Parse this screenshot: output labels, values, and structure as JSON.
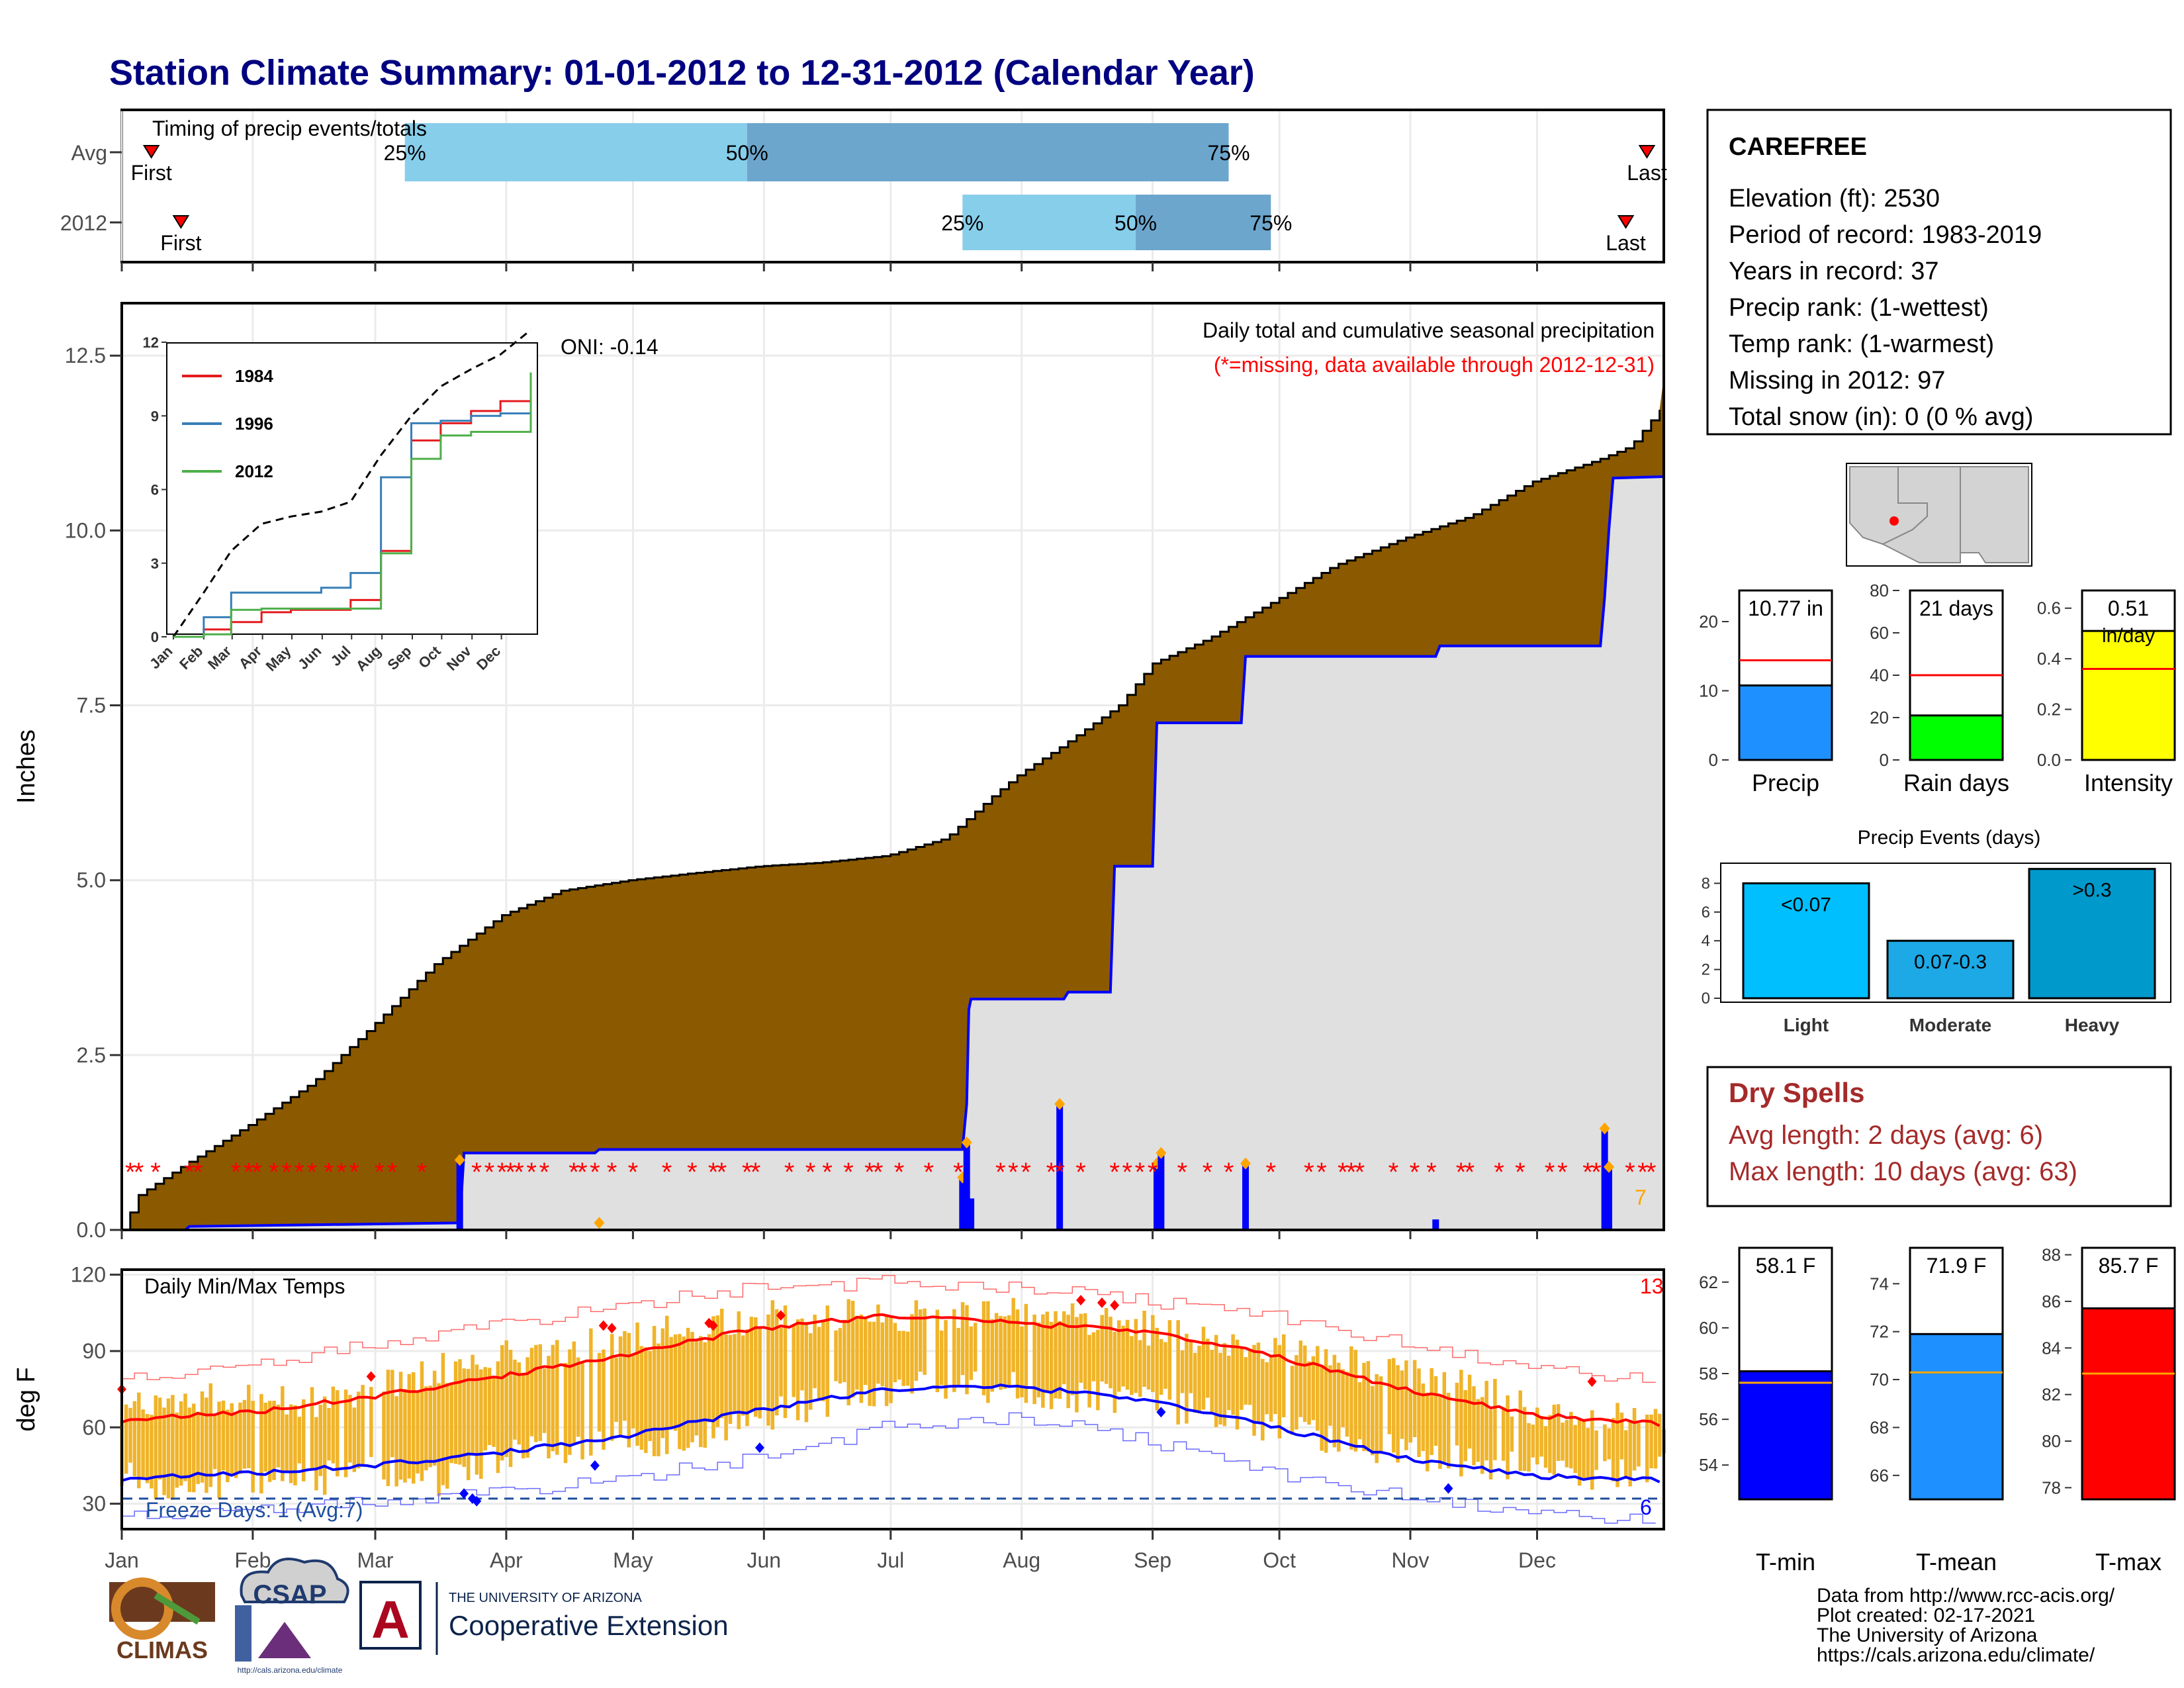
{
  "title": "Station Climate Summary: 01-01-2012 to 12-31-2012 (Calendar Year)",
  "station": {
    "name": "CAREFREE",
    "lines": [
      "Elevation (ft): 2530",
      "Period of record: 1983-2019",
      "Years in record: 37",
      "Precip rank:  (1-wettest)",
      "Temp rank:  (1-warmest)",
      "Missing in 2012: 97",
      "Total snow (in): 0 (0 % avg)"
    ]
  },
  "timing": {
    "label": "Timing of precip events/totals",
    "rows": [
      {
        "name": "Avg",
        "first_day": 8,
        "p25_day": 68,
        "p50_day": 149,
        "p75_day": 263,
        "last_day": 362
      },
      {
        "name": "2012",
        "first_day": 15,
        "p25_day": 200,
        "p50_day": 241,
        "p75_day": 273,
        "last_day": 357
      }
    ],
    "first_label": "First",
    "last_label": "Last",
    "pct_labels": [
      "25%",
      "50%",
      "75%"
    ]
  },
  "precip_panel": {
    "heading": "Daily total and cumulative seasonal precipitation",
    "note": "(*=missing, data available through 2012-12-31)",
    "oni": "ONI: -0.14",
    "ylabel": "Inches",
    "y_ticks": [
      "0.0",
      "2.5",
      "5.0",
      "7.5",
      "10.0",
      "12.5"
    ],
    "corner_count": "7",
    "colors": {
      "avg_fill": "#8B5A00",
      "obs_fill": "#E0E0E0",
      "obs_line": "#0000FF",
      "missing": "#FF0000",
      "event": "#FFA500"
    }
  },
  "inset": {
    "y_ticks": [
      "0",
      "3",
      "6",
      "9",
      "12"
    ],
    "x_ticks": [
      "Jan",
      "Feb",
      "Mar",
      "Apr",
      "May",
      "Jun",
      "Jul",
      "Aug",
      "Sep",
      "Oct",
      "Nov",
      "Dec"
    ],
    "legend": [
      {
        "name": "1984",
        "color": "#E41A1C"
      },
      {
        "name": "1996",
        "color": "#377EB8"
      },
      {
        "name": "2012",
        "color": "#4DAF4A"
      }
    ]
  },
  "temp_panel": {
    "heading": "Daily Min/Max Temps",
    "ylabel": "deg F",
    "y_ticks": [
      "30",
      "60",
      "90",
      "120"
    ],
    "freeze_label": "Freeze Days: 1 (Avg:7)",
    "count_high": "13",
    "count_low": "6"
  },
  "months": [
    "Jan",
    "Feb",
    "Mar",
    "Apr",
    "May",
    "Jun",
    "Jul",
    "Aug",
    "Sep",
    "Oct",
    "Nov",
    "Dec"
  ],
  "precip_bars": {
    "items": [
      {
        "value": "10.77 in",
        "label": "Precip",
        "color": "#1E90FF",
        "obs": 10.77,
        "avg": 14.4,
        "ticks": [
          "0",
          "10",
          "20"
        ]
      },
      {
        "value": "21 days",
        "label": "Rain days",
        "color": "#00FF00",
        "obs": 21,
        "avg": 40,
        "ticks": [
          "0",
          "20",
          "40",
          "60",
          "80"
        ]
      },
      {
        "value": "0.51",
        "unit": "in/day",
        "label": "Intensity",
        "color": "#FFFF00",
        "obs": 0.51,
        "avg": 0.36,
        "ticks": [
          "0.0",
          "0.2",
          "0.4",
          "0.6"
        ]
      }
    ]
  },
  "events": {
    "title": "Precip Events (days)",
    "y_ticks": [
      "0",
      "2",
      "4",
      "6",
      "8"
    ],
    "bars": [
      {
        "category": "Light",
        "label": "<0.07",
        "value": 8,
        "color": "#00BFFF"
      },
      {
        "category": "Moderate",
        "label": "0.07-0.3",
        "value": 4,
        "color": "#1CA9E6"
      },
      {
        "category": "Heavy",
        "label": ">0.3",
        "value": 9,
        "color": "#0099CC"
      }
    ]
  },
  "dry_spells": {
    "title": "Dry Spells",
    "lines": [
      "Avg length: 2 days (avg: 6)",
      "Max length: 10 days (avg: 63)"
    ]
  },
  "temp_bars": {
    "items": [
      {
        "value": "58.1 F",
        "label": "T-min",
        "color": "#0000FF",
        "obs": 58.1,
        "avg": 57.6,
        "lo": 52.5,
        "hi": 63.5,
        "ticks": [
          "54",
          "56",
          "58",
          "60",
          "62"
        ]
      },
      {
        "value": "71.9 F",
        "label": "T-mean",
        "color": "#1E90FF",
        "obs": 71.9,
        "avg": 70.3,
        "lo": 65.0,
        "hi": 75.5,
        "ticks": [
          "66",
          "68",
          "70",
          "72",
          "74"
        ]
      },
      {
        "value": "85.7 F",
        "label": "T-max",
        "color": "#FF0000",
        "obs": 85.7,
        "avg": 82.9,
        "lo": 77.5,
        "hi": 88.3,
        "ticks": [
          "78",
          "80",
          "82",
          "84",
          "86",
          "88"
        ]
      }
    ]
  },
  "footer": {
    "lines": [
      "Data from http://www.rcc-acis.org/",
      "Plot created: 02-17-2021",
      "The University of Arizona",
      "https://cals.arizona.edu/climate/"
    ],
    "logos": {
      "climas": "CLIMAS",
      "csap": "CSAP",
      "csap_url": "http://cals.arizona.edu/climate",
      "ua_small": "THE UNIVERSITY OF ARIZONA",
      "ua_big": "Cooperative Extension",
      "ua_letter": "A"
    }
  },
  "chart_data": [
    {
      "type": "area",
      "title": "Daily total and cumulative seasonal precipitation",
      "ylabel": "Inches",
      "ylim": [
        0,
        13.25
      ],
      "x_unit": "day of year",
      "series": [
        {
          "name": "avg_cumulative",
          "x": [
            1,
            5,
            15,
            31,
            46,
            60,
            75,
            91,
            105,
            121,
            136,
            152,
            166,
            182,
            196,
            207,
            213,
            223,
            237,
            245,
            258,
            274,
            288,
            305,
            320,
            335,
            350,
            358,
            362,
            366
          ],
          "values": [
            0,
            0.5,
            0.9,
            1.5,
            2.1,
            2.9,
            3.8,
            4.5,
            4.85,
            5.0,
            5.1,
            5.2,
            5.25,
            5.35,
            5.6,
            6.2,
            6.5,
            6.9,
            7.5,
            8.1,
            8.45,
            9.0,
            9.5,
            9.9,
            10.2,
            10.7,
            11.0,
            11.2,
            11.5,
            11.8
          ]
        },
        {
          "name": "2012_cumulative",
          "x": [
            1,
            16,
            17,
            81,
            82,
            113,
            114,
            200,
            201,
            201.5,
            202,
            224,
            225,
            235,
            236,
            245,
            246,
            266,
            267,
            312,
            313,
            351,
            352,
            353,
            354,
            366
          ],
          "values": [
            0,
            0,
            0.05,
            0.1,
            1.1,
            1.1,
            1.15,
            1.15,
            1.8,
            3.15,
            3.3,
            3.3,
            3.4,
            3.4,
            5.2,
            5.2,
            7.25,
            7.25,
            8.2,
            8.2,
            8.35,
            8.35,
            9.05,
            10.0,
            10.75,
            10.77
          ]
        },
        {
          "name": "2012_daily",
          "x": [
            81,
            200,
            201,
            202,
            223,
            246,
            247,
            267,
            312,
            352,
            353
          ],
          "values": [
            1.0,
            0.75,
            1.25,
            0.45,
            1.8,
            0.95,
            1.1,
            0.95,
            0.15,
            1.45,
            0.9
          ]
        }
      ]
    },
    {
      "type": "line",
      "title": "",
      "ylim": [
        0,
        12
      ],
      "series": [
        {
          "name": "avg",
          "x": [
            1,
            32,
            60,
            91,
            121,
            152,
            182,
            213,
            244,
            274,
            305,
            335,
            366
          ],
          "values": [
            0,
            1.8,
            3.5,
            4.6,
            4.9,
            5.1,
            5.5,
            7.4,
            9.0,
            10.2,
            10.9,
            11.5,
            12.5
          ]
        },
        {
          "name": "1984",
          "x": [
            1,
            32,
            60,
            91,
            121,
            152,
            182,
            213,
            244,
            274,
            305,
            335,
            366
          ],
          "values": [
            0,
            0.3,
            0.6,
            1.0,
            1.1,
            1.1,
            1.5,
            3.5,
            8.0,
            8.7,
            9.2,
            9.6,
            10.0
          ]
        },
        {
          "name": "1996",
          "x": [
            1,
            32,
            60,
            91,
            121,
            152,
            182,
            213,
            244,
            274,
            305,
            335,
            366
          ],
          "values": [
            0,
            0.8,
            1.8,
            1.8,
            1.8,
            2.0,
            2.6,
            6.5,
            8.7,
            8.8,
            9.0,
            9.1,
            9.1
          ]
        },
        {
          "name": "2012",
          "x": [
            1,
            32,
            60,
            91,
            121,
            152,
            182,
            213,
            244,
            274,
            305,
            335,
            366
          ],
          "values": [
            0,
            0.1,
            1.1,
            1.15,
            1.15,
            1.15,
            1.15,
            3.4,
            7.25,
            8.2,
            8.35,
            8.35,
            10.77
          ]
        }
      ]
    },
    {
      "type": "line",
      "title": "Daily Min/Max Temps",
      "ylabel": "deg F",
      "ylim": [
        20,
        122
      ],
      "series": [
        {
          "name": "avg_max",
          "x": [
            1,
            32,
            60,
            91,
            121,
            152,
            182,
            213,
            244,
            274,
            305,
            335,
            366
          ],
          "values": [
            63,
            66,
            72,
            80,
            89,
            99,
            104,
            101,
            98,
            88,
            75,
            65,
            61
          ]
        },
        {
          "name": "avg_min",
          "x": [
            1,
            32,
            60,
            91,
            121,
            152,
            182,
            213,
            244,
            274,
            305,
            335,
            366
          ],
          "values": [
            40,
            42,
            45,
            50,
            57,
            67,
            75,
            76,
            71,
            60,
            48,
            41,
            39
          ]
        },
        {
          "name": "record_max",
          "x": [
            1,
            32,
            60,
            91,
            121,
            152,
            182,
            213,
            244,
            274,
            305,
            335,
            366
          ],
          "values": [
            79,
            85,
            92,
            100,
            108,
            115,
            117,
            115,
            110,
            104,
            92,
            83,
            79
          ]
        },
        {
          "name": "record_min",
          "x": [
            1,
            32,
            60,
            91,
            121,
            152,
            182,
            213,
            244,
            274,
            305,
            335,
            366
          ],
          "values": [
            25,
            28,
            30,
            34,
            40,
            48,
            60,
            64,
            55,
            42,
            32,
            26,
            24
          ]
        },
        {
          "name": "2012_max",
          "x": [
            1,
            15,
            32,
            50,
            60,
            75,
            91,
            105,
            121,
            136,
            152,
            166,
            182,
            196,
            213,
            228,
            244,
            258,
            274,
            290,
            305,
            320,
            335,
            350,
            366
          ],
          "values": [
            66,
            70,
            72,
            69,
            75,
            82,
            87,
            91,
            95,
            99,
            103,
            104,
            105,
            103,
            106,
            102,
            99,
            95,
            91,
            86,
            80,
            77,
            68,
            64,
            62
          ]
        },
        {
          "name": "2012_min",
          "x": [
            1,
            15,
            32,
            50,
            60,
            75,
            91,
            105,
            121,
            136,
            152,
            166,
            182,
            196,
            213,
            228,
            244,
            258,
            274,
            290,
            305,
            320,
            335,
            350,
            366
          ],
          "values": [
            42,
            36,
            40,
            40,
            45,
            38,
            48,
            52,
            56,
            55,
            63,
            70,
            75,
            76,
            75,
            72,
            70,
            66,
            60,
            55,
            50,
            46,
            44,
            42,
            44
          ]
        }
      ]
    },
    {
      "type": "bar",
      "title": "",
      "categories": [
        "Precip",
        "Rain days",
        "Intensity"
      ],
      "values": [
        10.77,
        21,
        0.51
      ]
    },
    {
      "type": "bar",
      "title": "Precip Events (days)",
      "categories": [
        "Light",
        "Moderate",
        "Heavy"
      ],
      "values": [
        8,
        4,
        9
      ],
      "ylim": [
        0,
        9
      ]
    },
    {
      "type": "bar",
      "title": "",
      "categories": [
        "T-min",
        "T-mean",
        "T-max"
      ],
      "values": [
        58.1,
        71.9,
        85.7
      ]
    }
  ]
}
